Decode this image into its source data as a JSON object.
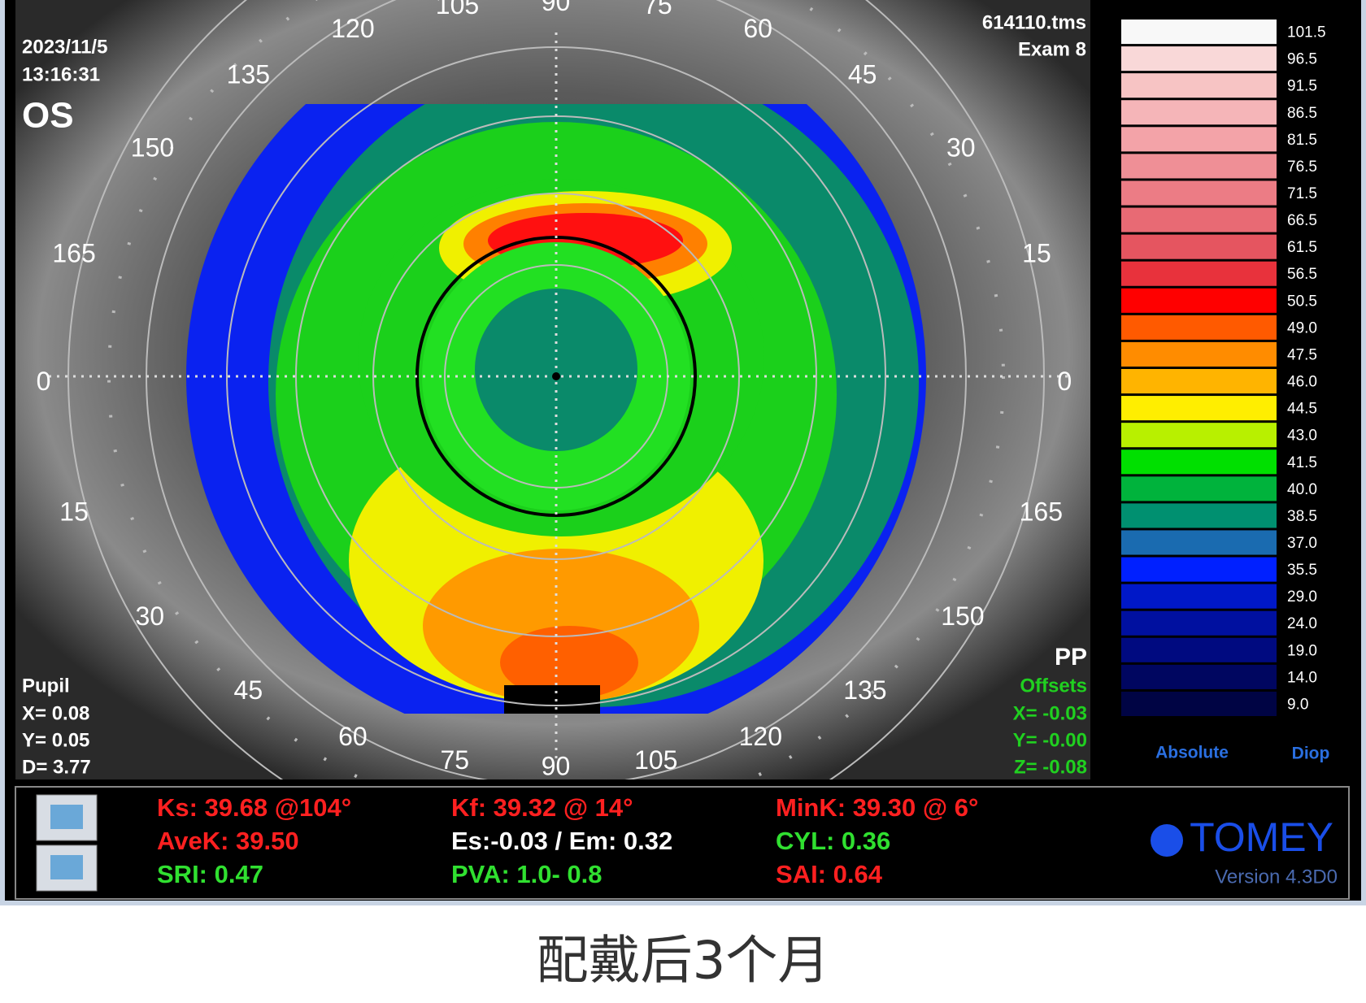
{
  "header": {
    "date": "2023/11/5",
    "time": "13:16:31",
    "eye": "OS",
    "file": "614110.tms",
    "exam": "Exam 8"
  },
  "angle_labels": [
    "105",
    "90",
    "75",
    "120",
    "60",
    "135",
    "45",
    "150",
    "30",
    "165",
    "15",
    "0",
    "0",
    "15",
    "165",
    "30",
    "150",
    "45",
    "135",
    "60",
    "120",
    "75",
    "90",
    "105"
  ],
  "pupil": {
    "title": "Pupil",
    "x": "X=  0.08",
    "y": "Y=  0.05",
    "d": "D=  3.77"
  },
  "offsets": {
    "pp": "PP",
    "title": "Offsets",
    "x": "X= -0.03",
    "y": "Y= -0.00",
    "z": "Z= -0.08"
  },
  "color_scale": {
    "values": [
      "101.5",
      "96.5",
      "91.5",
      "86.5",
      "81.5",
      "76.5",
      "71.5",
      "66.5",
      "61.5",
      "56.5",
      "50.5",
      "49.0",
      "47.5",
      "46.0",
      "44.5",
      "43.0",
      "41.5",
      "40.0",
      "38.5",
      "37.0",
      "35.5",
      "29.0",
      "24.0",
      "19.0",
      "14.0",
      "9.0"
    ],
    "colors": [
      "#f8f8f8",
      "#f9d8d8",
      "#f7c4c4",
      "#f5b5b8",
      "#f3a3a8",
      "#ef8f96",
      "#ec7c85",
      "#e86a74",
      "#e55560",
      "#e8323c",
      "#ff0000",
      "#ff5a00",
      "#ff8c00",
      "#ffb400",
      "#ffee00",
      "#b8f000",
      "#00e000",
      "#00b33c",
      "#009070",
      "#1a6bb0",
      "#0020ff",
      "#0018c8",
      "#0010a0",
      "#000a80",
      "#000660",
      "#000444"
    ],
    "mode": "Absolute",
    "unit": "Diop"
  },
  "indices": {
    "rows": [
      [
        "Ks: 39.68 @104°",
        "Kf: 39.32 @ 14°",
        "MinK: 39.30 @  6°"
      ],
      [
        "AveK: 39.50",
        "Es:-0.03 / Em: 0.32",
        "CYL:  0.36"
      ],
      [
        "SRI: 0.47",
        "PVA:   1.0-  0.8",
        "SAI: 0.64"
      ]
    ],
    "colors": [
      [
        "#ff2020",
        "#ff2020",
        "#ff2020"
      ],
      [
        "#ff2020",
        "#ffffff",
        "#30e030"
      ],
      [
        "#30e030",
        "#30e030",
        "#ff2020"
      ]
    ]
  },
  "brand": "TOMEY",
  "version": "Version 4.3D0",
  "caption": "配戴后3个月"
}
